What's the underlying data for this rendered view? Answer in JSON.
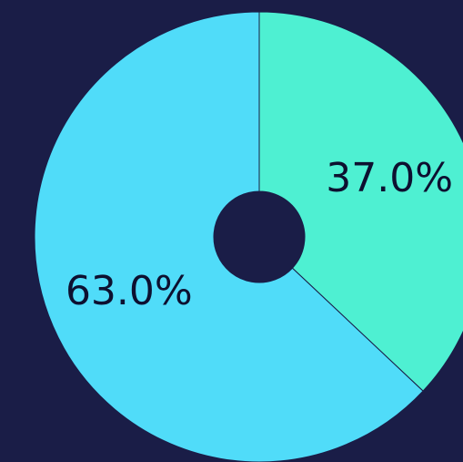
{
  "chart_data": {
    "type": "donut",
    "values": [
      37.0,
      63.0
    ],
    "value_labels": [
      "37.0%",
      "63.0%"
    ],
    "colors": [
      "#4ef0d2",
      "#50dcf9"
    ]
  }
}
